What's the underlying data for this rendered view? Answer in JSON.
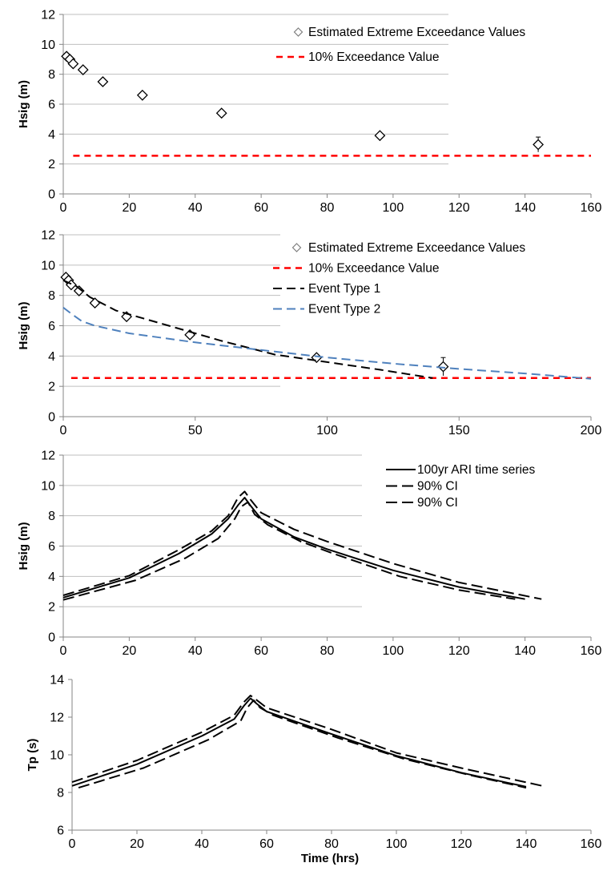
{
  "chart_data": [
    {
      "type": "scatter",
      "ylabel": "Hsig (m)",
      "xlabel": "",
      "xlim": [
        0,
        160
      ],
      "ylim": [
        0,
        12
      ],
      "xticks": [
        0,
        20,
        40,
        60,
        80,
        100,
        120,
        140,
        160
      ],
      "yticks": [
        0,
        2,
        4,
        6,
        8,
        10,
        12
      ],
      "grid": true,
      "legend_position": "top-right",
      "series": [
        {
          "name": "Estimated Extreme Exceedance Values",
          "kind": "marker",
          "marker": "diamond",
          "color": "#000000",
          "points": [
            {
              "x": 1,
              "y": 9.2
            },
            {
              "x": 2,
              "y": 9.0
            },
            {
              "x": 3,
              "y": 8.7
            },
            {
              "x": 6,
              "y": 8.3
            },
            {
              "x": 12,
              "y": 7.5
            },
            {
              "x": 24,
              "y": 6.6
            },
            {
              "x": 48,
              "y": 5.4
            },
            {
              "x": 96,
              "y": 3.9
            },
            {
              "x": 144,
              "y": 3.3,
              "err": 0.5
            }
          ]
        },
        {
          "name": "10% Exceedance Value",
          "kind": "line",
          "dash": "8,6",
          "color": "#ff0000",
          "width": 2.5,
          "points": [
            {
              "x": 3,
              "y": 2.55
            },
            {
              "x": 160,
              "y": 2.55
            }
          ]
        }
      ]
    },
    {
      "type": "line",
      "ylabel": "Hsig (m)",
      "xlabel": "",
      "xlim": [
        0,
        200
      ],
      "ylim": [
        0,
        12
      ],
      "xticks": [
        0,
        50,
        100,
        150,
        200
      ],
      "yticks": [
        0,
        2,
        4,
        6,
        8,
        10,
        12
      ],
      "grid": true,
      "legend_position": "top-right",
      "series": [
        {
          "name": "Estimated Extreme Exceedance Values",
          "kind": "marker",
          "marker": "diamond",
          "color": "#000000",
          "points": [
            {
              "x": 1,
              "y": 9.2
            },
            {
              "x": 2,
              "y": 9.0
            },
            {
              "x": 3,
              "y": 8.7
            },
            {
              "x": 6,
              "y": 8.3
            },
            {
              "x": 12,
              "y": 7.5
            },
            {
              "x": 24,
              "y": 6.6
            },
            {
              "x": 48,
              "y": 5.4
            },
            {
              "x": 96,
              "y": 3.9
            },
            {
              "x": 144,
              "y": 3.3,
              "err": 0.6
            }
          ]
        },
        {
          "name": "10% Exceedance Value",
          "kind": "line",
          "dash": "8,6",
          "color": "#ff0000",
          "width": 2.5,
          "points": [
            {
              "x": 3,
              "y": 2.55
            },
            {
              "x": 200,
              "y": 2.55
            }
          ]
        },
        {
          "name": "Event Type 1",
          "kind": "line",
          "dash": "11,6",
          "color": "#000000",
          "width": 2,
          "points": [
            {
              "x": 0,
              "y": 9.0
            },
            {
              "x": 5,
              "y": 8.6
            },
            {
              "x": 10,
              "y": 7.9
            },
            {
              "x": 20,
              "y": 7.0
            },
            {
              "x": 40,
              "y": 6.0
            },
            {
              "x": 60,
              "y": 5.0
            },
            {
              "x": 80,
              "y": 4.1
            },
            {
              "x": 100,
              "y": 3.6
            },
            {
              "x": 120,
              "y": 3.1
            },
            {
              "x": 140,
              "y": 2.55
            }
          ]
        },
        {
          "name": "Event Type 2",
          "kind": "line",
          "dash": "11,6",
          "color": "#4f81bd",
          "width": 2,
          "points": [
            {
              "x": 0,
              "y": 7.2
            },
            {
              "x": 3,
              "y": 6.8
            },
            {
              "x": 7,
              "y": 6.3
            },
            {
              "x": 12,
              "y": 6.0
            },
            {
              "x": 25,
              "y": 5.5
            },
            {
              "x": 50,
              "y": 4.9
            },
            {
              "x": 75,
              "y": 4.4
            },
            {
              "x": 100,
              "y": 3.9
            },
            {
              "x": 125,
              "y": 3.5
            },
            {
              "x": 150,
              "y": 3.15
            },
            {
              "x": 175,
              "y": 2.85
            },
            {
              "x": 200,
              "y": 2.5
            }
          ]
        }
      ]
    },
    {
      "type": "line",
      "ylabel": "Hsig (m)",
      "xlabel": "",
      "xlim": [
        0,
        160
      ],
      "ylim": [
        0,
        12
      ],
      "xticks": [
        0,
        20,
        40,
        60,
        80,
        100,
        120,
        140,
        160
      ],
      "yticks": [
        0,
        2,
        4,
        6,
        8,
        10,
        12
      ],
      "grid": true,
      "legend_position": "top-right",
      "series": [
        {
          "name": "100yr ARI time series",
          "kind": "line",
          "dash": "",
          "color": "#000000",
          "width": 2,
          "points": [
            {
              "x": 0,
              "y": 2.6
            },
            {
              "x": 20,
              "y": 3.9
            },
            {
              "x": 35,
              "y": 5.5
            },
            {
              "x": 45,
              "y": 6.8
            },
            {
              "x": 50,
              "y": 7.8
            },
            {
              "x": 53,
              "y": 8.7
            },
            {
              "x": 55,
              "y": 9.2
            },
            {
              "x": 57,
              "y": 8.6
            },
            {
              "x": 60,
              "y": 7.8
            },
            {
              "x": 70,
              "y": 6.6
            },
            {
              "x": 80,
              "y": 5.8
            },
            {
              "x": 100,
              "y": 4.4
            },
            {
              "x": 120,
              "y": 3.3
            },
            {
              "x": 140,
              "y": 2.5
            }
          ]
        },
        {
          "name": "90% CI",
          "kind": "line",
          "dash": "14,6",
          "color": "#000000",
          "width": 2,
          "points": [
            {
              "x": 0,
              "y": 2.75
            },
            {
              "x": 20,
              "y": 4.05
            },
            {
              "x": 35,
              "y": 5.75
            },
            {
              "x": 45,
              "y": 7.0
            },
            {
              "x": 50,
              "y": 8.0
            },
            {
              "x": 53,
              "y": 9.2
            },
            {
              "x": 55,
              "y": 9.6
            },
            {
              "x": 57,
              "y": 9.0
            },
            {
              "x": 60,
              "y": 8.2
            },
            {
              "x": 70,
              "y": 7.1
            },
            {
              "x": 80,
              "y": 6.3
            },
            {
              "x": 100,
              "y": 4.85
            },
            {
              "x": 120,
              "y": 3.6
            },
            {
              "x": 145,
              "y": 2.5
            }
          ]
        },
        {
          "name": "90% CI",
          "kind": "line",
          "dash": "14,6",
          "color": "#000000",
          "width": 2,
          "points": [
            {
              "x": 0,
              "y": 2.45
            },
            {
              "x": 22,
              "y": 3.75
            },
            {
              "x": 37,
              "y": 5.2
            },
            {
              "x": 47,
              "y": 6.5
            },
            {
              "x": 52,
              "y": 7.8
            },
            {
              "x": 54,
              "y": 8.6
            },
            {
              "x": 56,
              "y": 8.9
            },
            {
              "x": 58,
              "y": 8.1
            },
            {
              "x": 62,
              "y": 7.4
            },
            {
              "x": 72,
              "y": 6.3
            },
            {
              "x": 82,
              "y": 5.5
            },
            {
              "x": 102,
              "y": 4.0
            },
            {
              "x": 120,
              "y": 3.1
            },
            {
              "x": 137,
              "y": 2.5
            }
          ]
        }
      ]
    },
    {
      "type": "line",
      "ylabel": "Tp (s)",
      "xlabel": "Time (hrs)",
      "xlim": [
        0,
        160
      ],
      "ylim": [
        6,
        14
      ],
      "xticks": [
        0,
        20,
        40,
        60,
        80,
        100,
        120,
        140,
        160
      ],
      "yticks": [
        6,
        8,
        10,
        12,
        14
      ],
      "grid": false,
      "series": [
        {
          "kind": "line",
          "dash": "",
          "color": "#000000",
          "width": 2,
          "points": [
            {
              "x": 0,
              "y": 8.35
            },
            {
              "x": 20,
              "y": 9.5
            },
            {
              "x": 40,
              "y": 11.0
            },
            {
              "x": 50,
              "y": 11.9
            },
            {
              "x": 53,
              "y": 12.6
            },
            {
              "x": 55,
              "y": 13.0
            },
            {
              "x": 57,
              "y": 12.7
            },
            {
              "x": 60,
              "y": 12.3
            },
            {
              "x": 80,
              "y": 11.1
            },
            {
              "x": 100,
              "y": 9.95
            },
            {
              "x": 120,
              "y": 9.05
            },
            {
              "x": 140,
              "y": 8.3
            }
          ]
        },
        {
          "kind": "line",
          "dash": "14,6",
          "color": "#000000",
          "width": 2,
          "points": [
            {
              "x": 0,
              "y": 8.55
            },
            {
              "x": 20,
              "y": 9.7
            },
            {
              "x": 40,
              "y": 11.2
            },
            {
              "x": 50,
              "y": 12.1
            },
            {
              "x": 53,
              "y": 12.8
            },
            {
              "x": 55,
              "y": 13.15
            },
            {
              "x": 57,
              "y": 12.9
            },
            {
              "x": 60,
              "y": 12.5
            },
            {
              "x": 80,
              "y": 11.35
            },
            {
              "x": 100,
              "y": 10.1
            },
            {
              "x": 120,
              "y": 9.3
            },
            {
              "x": 145,
              "y": 8.35
            }
          ]
        },
        {
          "kind": "line",
          "dash": "14,6",
          "color": "#000000",
          "width": 2,
          "points": [
            {
              "x": 2,
              "y": 8.25
            },
            {
              "x": 22,
              "y": 9.3
            },
            {
              "x": 42,
              "y": 10.8
            },
            {
              "x": 52,
              "y": 11.8
            },
            {
              "x": 54,
              "y": 12.5
            },
            {
              "x": 56,
              "y": 12.9
            },
            {
              "x": 58,
              "y": 12.5
            },
            {
              "x": 62,
              "y": 12.1
            },
            {
              "x": 82,
              "y": 10.9
            },
            {
              "x": 102,
              "y": 9.8
            },
            {
              "x": 122,
              "y": 8.95
            },
            {
              "x": 140,
              "y": 8.25
            }
          ]
        }
      ]
    }
  ]
}
